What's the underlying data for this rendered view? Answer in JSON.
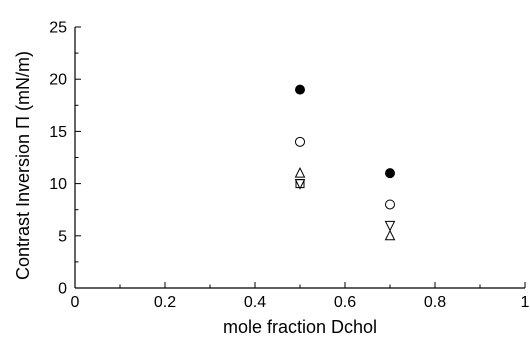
{
  "chart_data": {
    "type": "scatter",
    "xlabel": "mole fraction Dchol",
    "ylabel": "Contrast Inversion Π  (mN/m)",
    "xlim": [
      0,
      1
    ],
    "ylim": [
      0,
      25
    ],
    "x_ticks": [
      "0",
      "0.2",
      "0.4",
      "0.6",
      "0.8",
      "1"
    ],
    "y_ticks": [
      "0",
      "5",
      "10",
      "15",
      "20",
      "25"
    ],
    "grid": false,
    "series": [
      {
        "marker": "filled-circle",
        "points": [
          [
            0.5,
            19
          ],
          [
            0.7,
            11
          ]
        ]
      },
      {
        "marker": "open-circle",
        "points": [
          [
            0.5,
            14
          ],
          [
            0.7,
            8
          ]
        ]
      },
      {
        "marker": "open-triangle-up",
        "points": [
          [
            0.5,
            11
          ],
          [
            0.7,
            5
          ]
        ]
      },
      {
        "marker": "open-triangle-down",
        "points": [
          [
            0.5,
            10
          ],
          [
            0.7,
            6
          ]
        ]
      },
      {
        "marker": "open-square",
        "points": [
          [
            0.5,
            10
          ]
        ]
      }
    ]
  }
}
